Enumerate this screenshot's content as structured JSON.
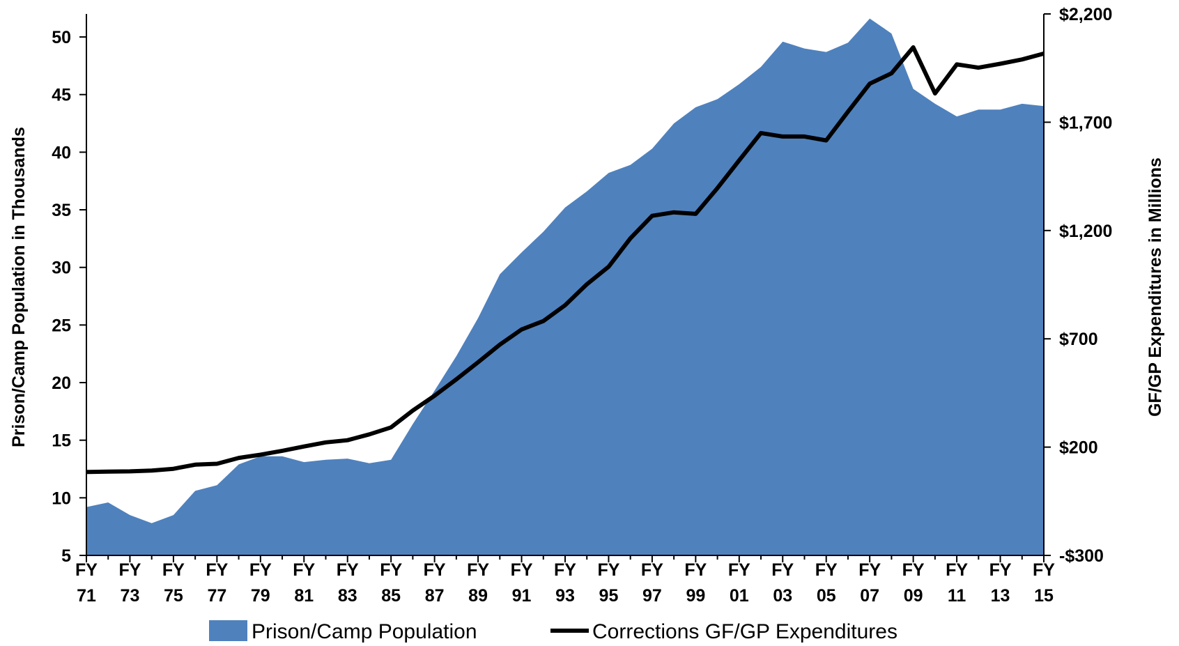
{
  "chart_data": {
    "type": "area",
    "x": [
      "71",
      "72",
      "73",
      "74",
      "75",
      "76",
      "77",
      "78",
      "79",
      "80",
      "81",
      "82",
      "83",
      "84",
      "85",
      "86",
      "87",
      "88",
      "89",
      "90",
      "91",
      "92",
      "93",
      "94",
      "95",
      "96",
      "97",
      "98",
      "99",
      "00",
      "01",
      "02",
      "03",
      "04",
      "05",
      "06",
      "07",
      "08",
      "09",
      "10",
      "11",
      "12",
      "13",
      "14",
      "15"
    ],
    "x_tick_labels": [
      {
        "top": "FY",
        "bottom": "71"
      },
      {
        "top": "FY",
        "bottom": "73"
      },
      {
        "top": "FY",
        "bottom": "75"
      },
      {
        "top": "FY",
        "bottom": "77"
      },
      {
        "top": "FY",
        "bottom": "79"
      },
      {
        "top": "FY",
        "bottom": "81"
      },
      {
        "top": "FY",
        "bottom": "83"
      },
      {
        "top": "FY",
        "bottom": "85"
      },
      {
        "top": "FY",
        "bottom": "87"
      },
      {
        "top": "FY",
        "bottom": "89"
      },
      {
        "top": "FY",
        "bottom": "91"
      },
      {
        "top": "FY",
        "bottom": "93"
      },
      {
        "top": "FY",
        "bottom": "95"
      },
      {
        "top": "FY",
        "bottom": "97"
      },
      {
        "top": "FY",
        "bottom": "99"
      },
      {
        "top": "FY",
        "bottom": "01"
      },
      {
        "top": "FY",
        "bottom": "03"
      },
      {
        "top": "FY",
        "bottom": "05"
      },
      {
        "top": "FY",
        "bottom": "07"
      },
      {
        "top": "FY",
        "bottom": "09"
      },
      {
        "top": "FY",
        "bottom": "11"
      },
      {
        "top": "FY",
        "bottom": "13"
      },
      {
        "top": "FY",
        "bottom": "15"
      }
    ],
    "series": [
      {
        "name": "Prison/Camp Population",
        "type": "area",
        "axis": "left",
        "color": "#4f81bd",
        "values": [
          9.2,
          9.6,
          8.5,
          7.8,
          8.5,
          10.6,
          11.1,
          12.9,
          13.6,
          13.6,
          13.1,
          13.3,
          13.4,
          13.0,
          13.3,
          16.4,
          19.3,
          22.3,
          25.6,
          29.4,
          31.3,
          33.1,
          35.2,
          36.6,
          38.2,
          38.9,
          40.3,
          42.5,
          43.9,
          44.6,
          45.9,
          47.4,
          49.6,
          49.0,
          48.7,
          49.5,
          51.6,
          50.3,
          45.5,
          44.2,
          43.1,
          43.7,
          43.7,
          44.2,
          44.0
        ]
      },
      {
        "name": "Corrections GF/GP Expenditures",
        "type": "line",
        "axis": "right",
        "color": "#000000",
        "values": [
          85,
          87,
          88,
          92,
          100,
          119,
          123,
          150,
          165,
          183,
          203,
          222,
          232,
          259,
          291,
          369,
          437,
          513,
          592,
          673,
          743,
          782,
          855,
          952,
          1033,
          1164,
          1268,
          1284,
          1277,
          1396,
          1524,
          1650,
          1634,
          1634,
          1616,
          1749,
          1878,
          1926,
          2046,
          1833,
          1967,
          1952,
          1970,
          1990,
          2017
        ]
      }
    ],
    "left_axis": {
      "label": "Prison/Camp Population in Thousands",
      "min": 5,
      "max": 52,
      "ticks": [
        5,
        10,
        15,
        20,
        25,
        30,
        35,
        40,
        45,
        50
      ],
      "tick_labels": [
        "5",
        "10",
        "15",
        "20",
        "25",
        "30",
        "35",
        "40",
        "45",
        "50"
      ]
    },
    "right_axis": {
      "label": "GF/GP Expenditures in Millions",
      "min": -300,
      "max": 2200,
      "ticks": [
        -300,
        200,
        700,
        1200,
        1700,
        2200
      ],
      "tick_labels": [
        "-$300",
        "$200",
        "$700",
        "$1,200",
        "$1,700",
        "$2,200"
      ]
    },
    "grid": false,
    "legend_position": "bottom",
    "legend": [
      {
        "label": "Prison/Camp Population",
        "symbol": "area",
        "color": "#4f81bd"
      },
      {
        "label": "Corrections GF/GP Expenditures",
        "symbol": "line",
        "color": "#000000"
      }
    ]
  }
}
